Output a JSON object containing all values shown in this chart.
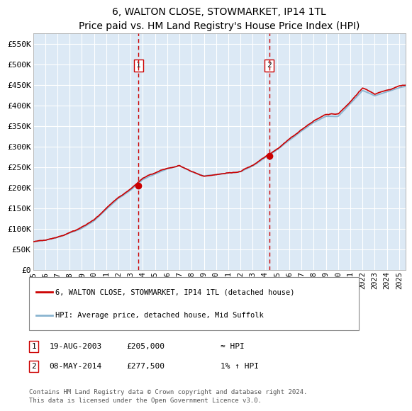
{
  "title": "6, WALTON CLOSE, STOWMARKET, IP14 1TL",
  "subtitle": "Price paid vs. HM Land Registry's House Price Index (HPI)",
  "ylabel_ticks": [
    "£0",
    "£50K",
    "£100K",
    "£150K",
    "£200K",
    "£250K",
    "£300K",
    "£350K",
    "£400K",
    "£450K",
    "£500K",
    "£550K"
  ],
  "ylim": [
    0,
    575000
  ],
  "xlim_start": 1995.0,
  "xlim_end": 2025.5,
  "plot_bg": "#dce9f5",
  "grid_color": "#ffffff",
  "red_line_color": "#cc0000",
  "blue_line_color": "#8ab4d0",
  "vline_color": "#cc0000",
  "marker1_x": 2003.63,
  "marker1_y": 205000,
  "marker2_x": 2014.36,
  "marker2_y": 277500,
  "sale1_date": "19-AUG-2003",
  "sale1_price": "£205,000",
  "sale1_hpi": "≈ HPI",
  "sale2_date": "08-MAY-2014",
  "sale2_price": "£277,500",
  "sale2_hpi": "1% ↑ HPI",
  "legend_line1": "6, WALTON CLOSE, STOWMARKET, IP14 1TL (detached house)",
  "legend_line2": "HPI: Average price, detached house, Mid Suffolk",
  "footer": "Contains HM Land Registry data © Crown copyright and database right 2024.\nThis data is licensed under the Open Government Licence v3.0.",
  "xticks": [
    1995,
    1996,
    1997,
    1998,
    1999,
    2000,
    2001,
    2002,
    2003,
    2004,
    2005,
    2006,
    2007,
    2008,
    2009,
    2010,
    2011,
    2012,
    2013,
    2014,
    2015,
    2016,
    2017,
    2018,
    2019,
    2020,
    2021,
    2022,
    2023,
    2024,
    2025
  ]
}
